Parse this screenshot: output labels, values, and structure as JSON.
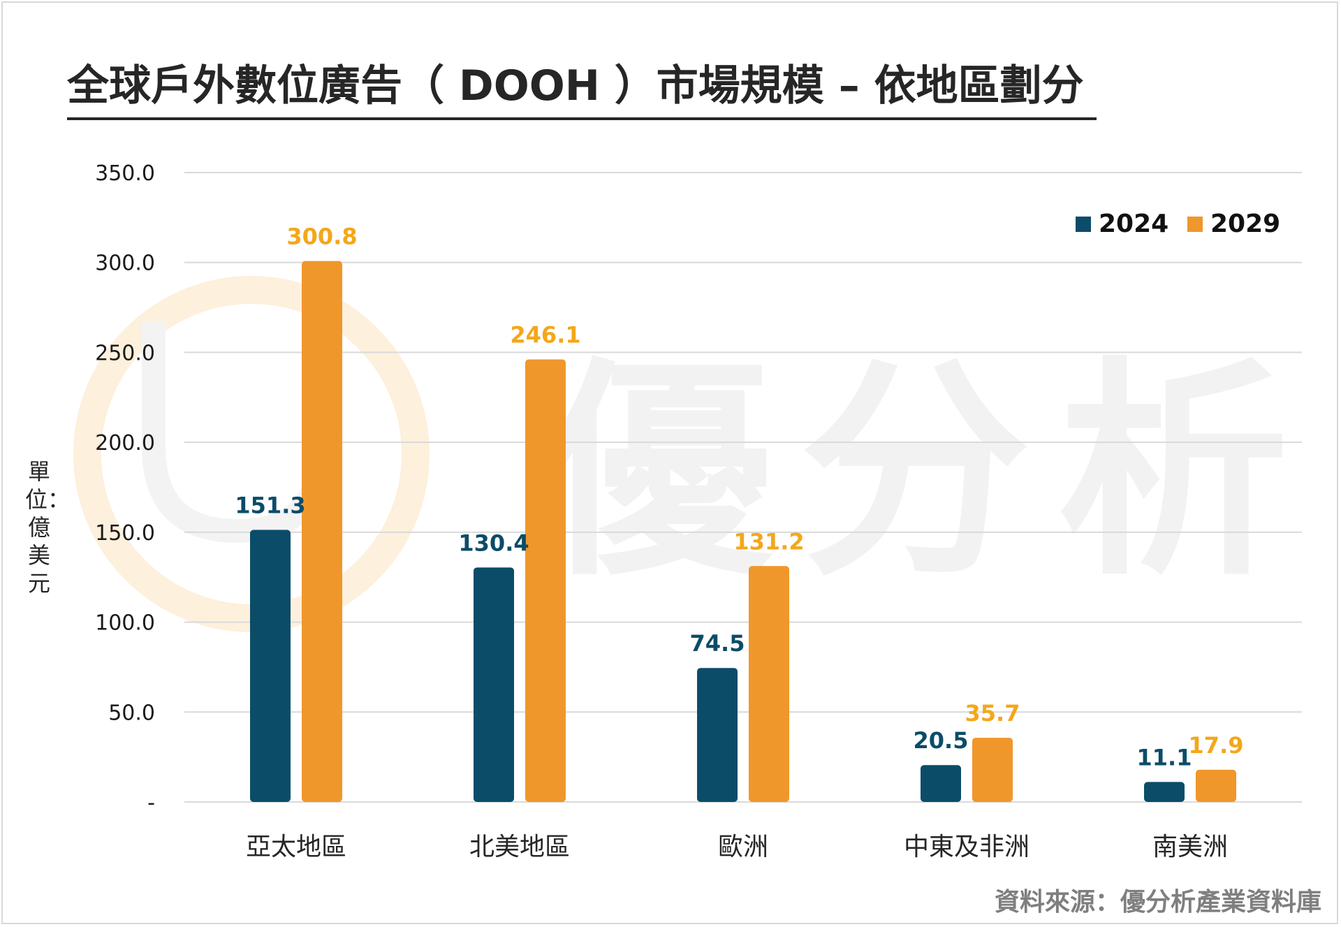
{
  "title": "全球戶外數位廣告（ DOOH ）市場規模 – 依地區劃分",
  "ylabel": "單位：億美元",
  "source": "資料來源：優分析產業資料庫",
  "watermark": "優分析",
  "colors": {
    "series_2024": "#0b4c69",
    "series_2029": "#f0972b",
    "label_2024": "#0b4c69",
    "label_2029": "#f4a71a",
    "grid": "#d9d9d9",
    "watermark": "#f2f2f2"
  },
  "chart_data": {
    "type": "bar",
    "categories": [
      "亞太地區",
      "北美地區",
      "歐洲",
      "中東及非洲",
      "南美洲"
    ],
    "series": [
      {
        "name": "2024",
        "values": [
          151.3,
          130.4,
          74.5,
          20.5,
          11.1
        ],
        "labels": [
          "151.3",
          "130.4",
          "74.5",
          "20.5",
          "11.1"
        ]
      },
      {
        "name": "2029",
        "values": [
          300.8,
          246.1,
          131.2,
          35.7,
          17.9
        ],
        "labels": [
          "300.8",
          "246.1",
          "131.2",
          "35.7",
          "17.9"
        ]
      }
    ],
    "ylim": [
      0,
      350
    ],
    "yticks": [
      "-",
      "50.0",
      "100.0",
      "150.0",
      "200.0",
      "250.0",
      "300.0",
      "350.0"
    ],
    "grid": true,
    "legend_position": "top-right"
  }
}
